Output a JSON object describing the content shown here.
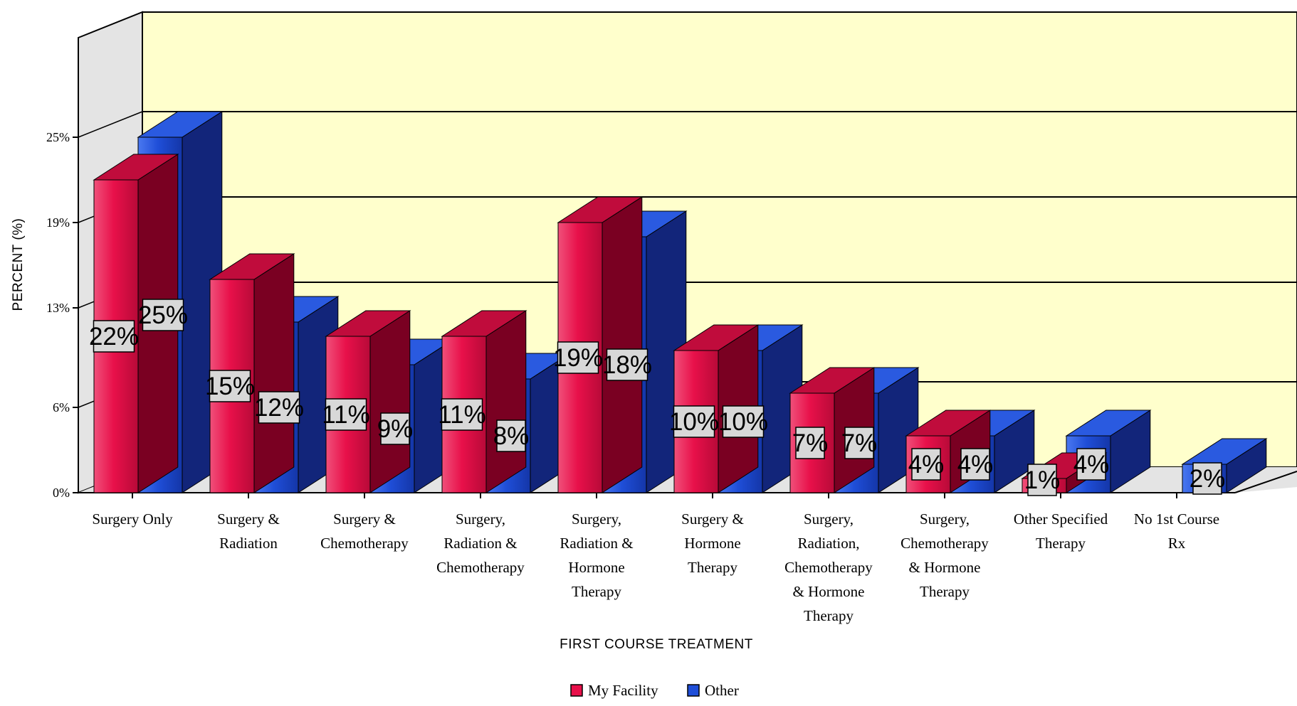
{
  "chart_data": {
    "type": "bar",
    "title": "",
    "xlabel": "FIRST COURSE TREATMENT",
    "ylabel": "PERCENT (%)",
    "ylim": [
      0,
      32
    ],
    "yticks": [
      0,
      6,
      13,
      19,
      25
    ],
    "ytick_labels": [
      "0%",
      "6%",
      "13%",
      "19%",
      "25%"
    ],
    "grid": true,
    "legend_position": "bottom",
    "categories": [
      [
        "Surgery Only"
      ],
      [
        "Surgery &",
        "Radiation"
      ],
      [
        "Surgery &",
        "Chemotherapy"
      ],
      [
        "Surgery,",
        "Radiation &",
        "Chemotherapy"
      ],
      [
        "Surgery,",
        "Radiation &",
        "Hormone",
        "Therapy"
      ],
      [
        "Surgery &",
        "Hormone",
        "Therapy"
      ],
      [
        "Surgery,",
        "Radiation,",
        "Chemotherapy",
        "& Hormone",
        "Therapy"
      ],
      [
        "Surgery,",
        "Chemotherapy",
        "& Hormone",
        "Therapy"
      ],
      [
        "Other Specified",
        "Therapy"
      ],
      [
        "No 1st Course",
        "Rx"
      ]
    ],
    "series": [
      {
        "name": "My Facility",
        "color": "#e8104a",
        "values": [
          22,
          15,
          11,
          11,
          19,
          10,
          7,
          4,
          1,
          0
        ],
        "labels": [
          "22%",
          "15%",
          "11%",
          "11%",
          "19%",
          "10%",
          "7%",
          "4%",
          "1%",
          ""
        ]
      },
      {
        "name": "Other",
        "color": "#1f4ed8",
        "values": [
          25,
          12,
          9,
          8,
          18,
          10,
          7,
          4,
          4,
          2
        ],
        "labels": [
          "25%",
          "12%",
          "9%",
          "8%",
          "18%",
          "10%",
          "7%",
          "4%",
          "4%",
          "2%"
        ]
      }
    ]
  }
}
